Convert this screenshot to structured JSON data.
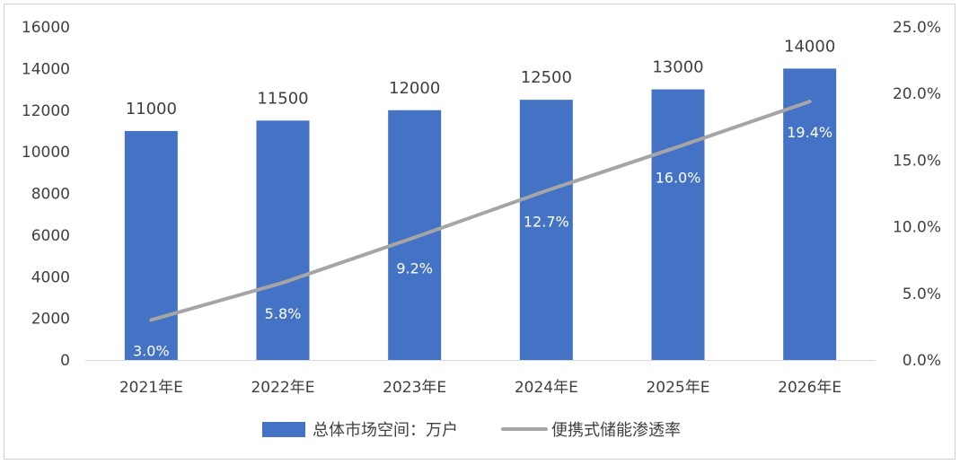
{
  "chart_data": {
    "type": "bar",
    "categories": [
      "2021年E",
      "2022年E",
      "2023年E",
      "2024年E",
      "2025年E",
      "2026年E"
    ],
    "series": [
      {
        "name": "总体市场空间：万户",
        "kind": "bar",
        "axis": "left",
        "values": [
          11000,
          11500,
          12000,
          12500,
          13000,
          14000
        ],
        "labels": [
          "11000",
          "11500",
          "12000",
          "12500",
          "13000",
          "14000"
        ],
        "color": "#4472C4"
      },
      {
        "name": "便携式储能渗透率",
        "kind": "line",
        "axis": "right",
        "values": [
          3.0,
          5.8,
          9.2,
          12.7,
          16.0,
          19.4
        ],
        "labels": [
          "3.0%",
          "5.8%",
          "9.2%",
          "12.7%",
          "16.0%",
          "19.4%"
        ],
        "color": "#A5A5A5"
      }
    ],
    "y_left": {
      "range": [
        0,
        16000
      ],
      "ticks": [
        0,
        2000,
        4000,
        6000,
        8000,
        10000,
        12000,
        14000,
        16000
      ],
      "tick_labels": [
        "0",
        "2000",
        "4000",
        "6000",
        "8000",
        "10000",
        "12000",
        "14000",
        "16000"
      ]
    },
    "y_right": {
      "range": [
        0,
        25
      ],
      "ticks": [
        0,
        5,
        10,
        15,
        20,
        25
      ],
      "tick_labels": [
        "0.0%",
        "5.0%",
        "10.0%",
        "15.0%",
        "20.0%",
        "25.0%"
      ]
    },
    "title": "",
    "xlabel": "",
    "ylabel": "",
    "grid": false,
    "legend": "bottom"
  }
}
